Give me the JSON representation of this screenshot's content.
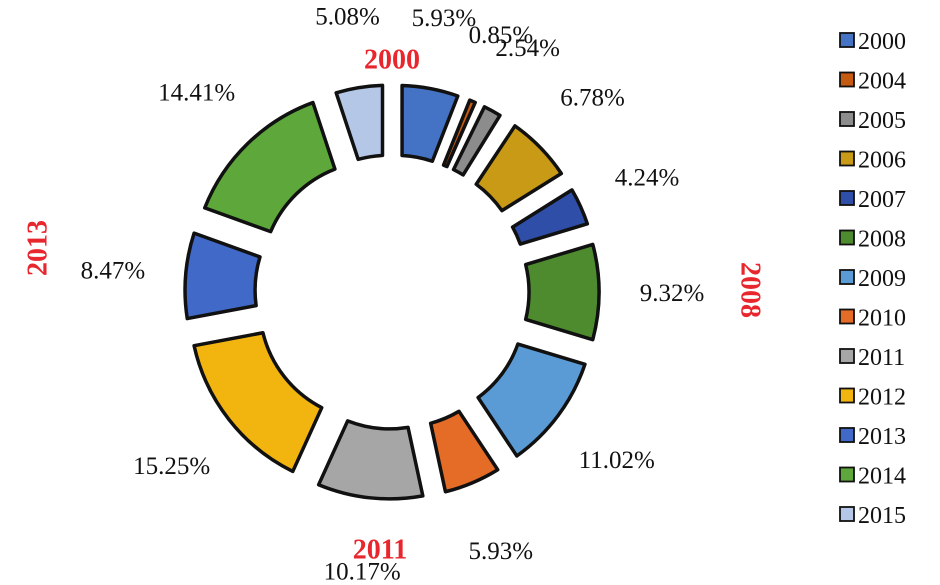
{
  "chart_data": {
    "type": "pie",
    "variant": "exploded-donut",
    "categories": [
      "2000",
      "2004",
      "2005",
      "2006",
      "2007",
      "2008",
      "2009",
      "2010",
      "2011",
      "2012",
      "2013",
      "2014",
      "2015"
    ],
    "values": [
      5.93,
      0.85,
      2.54,
      6.78,
      4.24,
      9.32,
      11.02,
      5.93,
      10.17,
      15.25,
      8.47,
      14.41,
      5.08
    ],
    "value_labels": [
      "5.93%",
      "0.85%",
      "2.54%",
      "6.78%",
      "4.24%",
      "9.32%",
      "11.02%",
      "5.93%",
      "10.17%",
      "15.25%",
      "8.47%",
      "14.41%",
      "5.08%"
    ],
    "colors": [
      "#4472c4",
      "#c55a11",
      "#8c8c8c",
      "#c89a16",
      "#2f4ea8",
      "#4e8a2e",
      "#5b9bd5",
      "#e46c26",
      "#a6a6a6",
      "#f2b50f",
      "#4169c8",
      "#5ea83b",
      "#b4c7e7"
    ],
    "legend": {
      "position": "right",
      "entries": [
        "2000",
        "2004",
        "2005",
        "2006",
        "2007",
        "2008",
        "2009",
        "2010",
        "2011",
        "2012",
        "2013",
        "2014",
        "2015"
      ]
    },
    "annotations": [
      {
        "text": "2000",
        "placement": "top",
        "color": "#e8262d"
      },
      {
        "text": "2008",
        "placement": "right",
        "color": "#e8262d"
      },
      {
        "text": "2011",
        "placement": "bottom",
        "color": "#e8262d"
      },
      {
        "text": "2013",
        "placement": "left",
        "color": "#e8262d"
      }
    ]
  }
}
